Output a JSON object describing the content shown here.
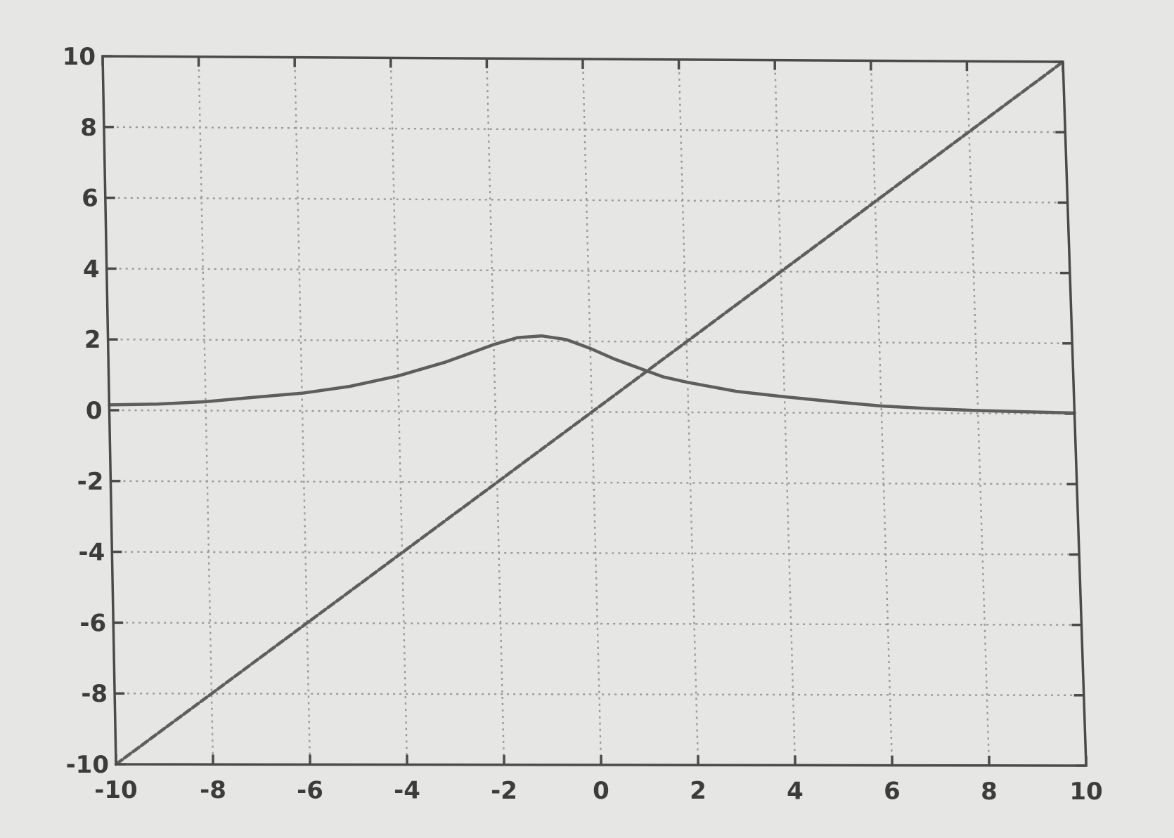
{
  "chart_data": {
    "type": "line",
    "title": "",
    "xlabel": "",
    "ylabel": "",
    "xlim": [
      -10,
      10
    ],
    "ylim": [
      -10,
      10
    ],
    "grid": true,
    "x_tick_labels": [
      "-10",
      "-8",
      "-6",
      "-4",
      "-2",
      "0",
      "2",
      "4",
      "6",
      "8",
      "10"
    ],
    "y_tick_labels": [
      "10",
      "8",
      "6",
      "4",
      "2",
      "0",
      "-2",
      "-4",
      "-6",
      "-8",
      "-10"
    ],
    "x_ticks": [
      -10,
      -8,
      -6,
      -4,
      -2,
      0,
      2,
      4,
      6,
      8,
      10
    ],
    "y_ticks": [
      10,
      8,
      6,
      4,
      2,
      0,
      -2,
      -4,
      -6,
      -8,
      -10
    ],
    "series": [
      {
        "style": "dashed",
        "color": "#5e5e5e",
        "x": [
          -10,
          10
        ],
        "y": [
          -10,
          10
        ]
      },
      {
        "style": "solid",
        "color": "#5e5e5e",
        "x": [
          -10,
          -9,
          -8,
          -7,
          -6,
          -5,
          -4,
          -3,
          -2,
          -1.5,
          -1,
          -0.5,
          0,
          0.5,
          1,
          1.5,
          2,
          3,
          4,
          5,
          6,
          7,
          8,
          9,
          10
        ],
        "y": [
          0.15,
          0.18,
          0.25,
          0.38,
          0.5,
          0.7,
          1.0,
          1.4,
          1.9,
          2.1,
          2.15,
          2.05,
          1.8,
          1.5,
          1.25,
          1.0,
          0.85,
          0.6,
          0.45,
          0.32,
          0.2,
          0.13,
          0.08,
          0.05,
          0.02
        ]
      }
    ]
  }
}
